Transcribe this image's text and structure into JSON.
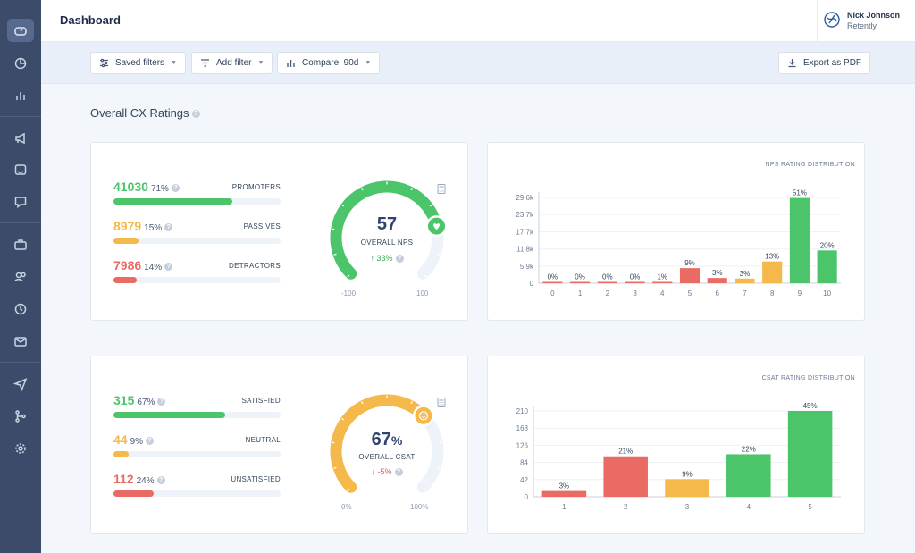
{
  "header": {
    "title": "Dashboard",
    "user": {
      "name": "Nick Johnson",
      "company": "Retently"
    }
  },
  "sidebar": {
    "items": [
      "dashboard-icon",
      "pie-chart-icon",
      "bar-chart-icon",
      "megaphone-icon",
      "feedback-icon",
      "chat-icon",
      "briefcase-icon",
      "users-icon",
      "clock-icon",
      "mail-icon",
      "send-icon",
      "flow-icon",
      "gear-icon"
    ]
  },
  "toolbar": {
    "saved_filters": "Saved filters",
    "add_filter": "Add filter",
    "compare": "Compare: 90d",
    "export": "Export as PDF"
  },
  "section": {
    "title": "Overall CX Ratings"
  },
  "nps": {
    "metrics": [
      {
        "value": "41030",
        "pct": "71%",
        "label": "PROMOTERS",
        "fraction": 0.71,
        "color": "#4cc46a"
      },
      {
        "value": "8979",
        "pct": "15%",
        "label": "PASSIVES",
        "fraction": 0.15,
        "color": "#f5b84a"
      },
      {
        "value": "7986",
        "pct": "14%",
        "label": "DETRACTORS",
        "fraction": 0.14,
        "color": "#ea6b64"
      }
    ],
    "score": "57",
    "score_fraction": 0.785,
    "label": "OVERALL NPS",
    "change": "↑ 33%",
    "min": "-100",
    "max": "100"
  },
  "csat": {
    "metrics": [
      {
        "value": "315",
        "pct": "67%",
        "label": "SATISFIED",
        "fraction": 0.67,
        "color": "#4cc46a"
      },
      {
        "value": "44",
        "pct": "9%",
        "label": "NEUTRAL",
        "fraction": 0.09,
        "color": "#f5b84a"
      },
      {
        "value": "112",
        "pct": "24%",
        "label": "UNSATISFIED",
        "fraction": 0.24,
        "color": "#ea6b64"
      }
    ],
    "score": "67",
    "score_unit": "%",
    "score_fraction": 0.67,
    "label": "OVERALL CSAT",
    "change": "↓ -5%",
    "min": "0%",
    "max": "100%"
  },
  "colors": {
    "green": "#4cc46a",
    "orange": "#f5b84a",
    "red": "#ea6b64",
    "track": "#eef3f9"
  },
  "chart_data": [
    {
      "type": "bar",
      "title": "NPS RATING DISTRIBUTION",
      "categories": [
        "0",
        "1",
        "2",
        "3",
        "4",
        "5",
        "6",
        "7",
        "8",
        "9",
        "10"
      ],
      "values": [
        0,
        0,
        0,
        0,
        400,
        5200,
        1800,
        1600,
        7500,
        29400,
        11300
      ],
      "data_labels": [
        "0%",
        "0%",
        "0%",
        "0%",
        "1%",
        "9%",
        "3%",
        "3%",
        "13%",
        "51%",
        "20%"
      ],
      "colors": [
        "#ea6b64",
        "#ea6b64",
        "#ea6b64",
        "#ea6b64",
        "#ea6b64",
        "#ea6b64",
        "#ea6b64",
        "#f5b84a",
        "#f5b84a",
        "#4cc46a",
        "#4cc46a"
      ],
      "yticks": [
        0,
        5900,
        11800,
        17700,
        23700,
        29600
      ],
      "ytick_labels": [
        "0",
        "5.9k",
        "11.8k",
        "17.7k",
        "23.7k",
        "29.6k"
      ],
      "ylim": [
        0,
        29600
      ],
      "grid": true
    },
    {
      "type": "bar",
      "title": "CSAT RATING DISTRIBUTION",
      "categories": [
        "1",
        "2",
        "3",
        "4",
        "5"
      ],
      "values": [
        14,
        99,
        43,
        104,
        210
      ],
      "data_labels": [
        "3%",
        "21%",
        "9%",
        "22%",
        "45%"
      ],
      "colors": [
        "#ea6b64",
        "#ea6b64",
        "#f5b84a",
        "#4cc46a",
        "#4cc46a"
      ],
      "yticks": [
        0,
        42,
        84,
        126,
        168,
        210
      ],
      "ytick_labels": [
        "0",
        "42",
        "84",
        "126",
        "168",
        "210"
      ],
      "ylim": [
        0,
        210
      ],
      "grid": true
    }
  ]
}
